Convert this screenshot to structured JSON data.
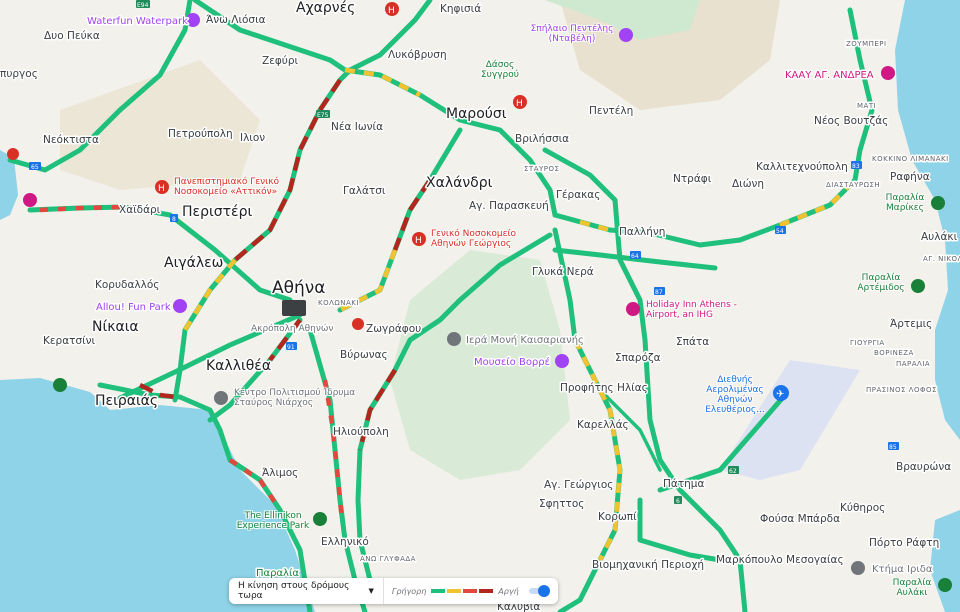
{
  "map": {
    "colors": {
      "fast": "#1fbf7c",
      "medium": "#f2c230",
      "slow": "#e2483d",
      "slowest": "#b3261e",
      "water": "#8fd3e8",
      "land": "#f3f1ec"
    },
    "places": {
      "acharnes": "Αχαρνές",
      "ano_liosia": "Άνω Λιόσια",
      "dyo_peuka": "Δυο Πεύκα",
      "pyrgos": "πυργος",
      "zefyri": "Ζεφύρι",
      "lykovrysi": "Λυκόβρυση",
      "kifisia": "Κηφισιά",
      "neoktista": "Νεόκτιστα",
      "petroupoli": "Πετρούπολη",
      "ilion": "Ιλιον",
      "nea_ionia": "Νέα Ιωνία",
      "marousi": "Μαρούσι",
      "vrilissia": "Βριλήσσια",
      "penteli": "Πεντέλη",
      "galatsi": "Γαλάτσι",
      "chalandri": "Χαλάνδρι",
      "peristeri": "Περιστέρι",
      "chaidari": "Χαϊδάρι",
      "ag_paraskevi": "Αγ. Παρασκευή",
      "gerakas": "Γέρακας",
      "pallini": "Παλλήνη",
      "ntrafi": "Ντράφι",
      "dioni": "Διώνη",
      "kallitechnoupoli": "Καλλιτεχνούπολη",
      "neos_voutzas": "Νέος Βουτζάς",
      "rafina": "Ραφήνα",
      "aigaleo": "Αιγάλεω",
      "athina": "Αθήνα",
      "korydallos": "Κορυδαλλός",
      "glyka_nera": "Γλυκά Νερά",
      "nikaia": "Νίκαια",
      "keratsini": "Κερατσίνι",
      "zografou": "Ζωγράφου",
      "kallithea": "Καλλιθέα",
      "vyronas": "Βύρωνας",
      "peiraias": "Πειραιάς",
      "ilioupoli": "Ηλιούπολη",
      "alimos": "Άλιμος",
      "elliniko": "Ελληνικό",
      "spata": "Σπάτα",
      "sparoza": "Σπαρόζα",
      "artemis": "Άρτεμις",
      "profitis_ilias": "Προφήτης Ηλίας",
      "karellas": "Καρελλάς",
      "ag_georgios": "Αγ. Γεώργιος",
      "sfittos": "Σφηττος",
      "koropi": "Κορωπί",
      "patima": "Πάτημα",
      "vravrona": "Βραυρώνα",
      "kythiros": "Κύθηρος",
      "fousa_mparda": "Φούσα Μπάρδα",
      "porto_rafti": "Πόρτο Ράφτη",
      "markopoulo": "Μαρκόπουλο Μεσογαίας",
      "viomichaniki": "Βιομηχανική Περιοχή",
      "kalyvia": "Καλύβια",
      "aulaki": "Αυλάκι"
    },
    "small_labels": {
      "zoumperi": "ΖΟΥΜΠΕΡΙ",
      "mati": "ΜΑΤΙ",
      "kokkino_limanaki": "ΚΟΚΚΙΝΟ ΛΙΜΑΝΑΚΙ",
      "diastavrosi": "ΔΙΑΣΤΑΥΡΩΣΗ",
      "stavros": "ΣΤΑΥΡΟΣ",
      "ag_nikolaos": "ΑΓ. ΝΙΚΟΛ",
      "kolonaki": "ΚΟΛΩΝΑΚΙ",
      "giourgia": "ΓΙΟΥΡΓΙΑ",
      "vorineza": "ΒΟΡΙΝΕΖΑ",
      "paralia": "ΠΑΡΑΛΙΑ",
      "prasinos_lofos": "ΠΡΑΣΙΝΟΣ ΛΟΦΟΣ",
      "ano_glyfada": "ΑΝΩ ΓΛΥΦΑΔΑ"
    },
    "pois": {
      "waterfun": "Waterfun Waterpark",
      "spilaio": "Σπήλαιο Πεντέλης (Νταβέλη)",
      "dasos": "Δάσος Συγγρού",
      "kaay": "ΚΑΑΥ ΑΓ. ΑΝΔΡΕΑ",
      "attikon": "Πανεπιστημιακό Γενικό Νοσοκομείο «Αττικόν»",
      "georgios": "Γενικό Νοσοκομείο Αθηνών Γεώργιος",
      "marikes": "Παραλία Μαρίκες",
      "allou": "Allou! Fun Park",
      "artemidos": "Παραλία Αρτέμιδος",
      "holiday": "Holiday Inn Athens - Airport, an IHG",
      "acropolis": "Ακρόπολη Αθηνών",
      "kaisariani": "Ιερά Μονή Καισαριανής",
      "vorre": "Μουσείο Βορρέ",
      "snfcc": "Κέντρο Πολιτισμού Ίδρυμα Σταύρος Νιάρχος",
      "airport": "Διεθνής Αερολιμένας Αθηνών Ελευθέριος...",
      "ellinikon": "The Ellinikon Experience Park",
      "paralia": "Παραλία",
      "ktima": "Κτήμα Ιριδα",
      "paralia_aulaki": "Παραλία Αυλάκι"
    },
    "shields": [
      "E94",
      "E75",
      "65",
      "8",
      "54",
      "83",
      "64",
      "62",
      "6",
      "91",
      "85",
      "87"
    ]
  },
  "traffic_legend": {
    "selector_label": "Η κίνηση στους δρόμους τωρα",
    "fast_label": "Γρήγορη",
    "slow_label": "Αργή",
    "toggle_on": true
  }
}
